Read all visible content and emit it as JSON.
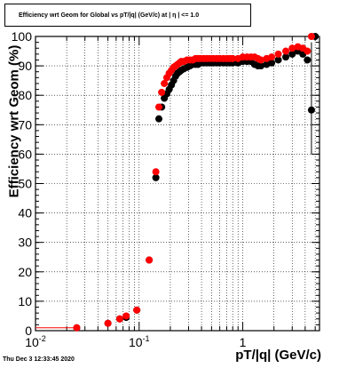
{
  "title": "Efficiency wrt Geom for Global vs pT/|q| (GeV/c) at | η | <= 1.0",
  "timestamp": "Thu Dec  3 12:33:45 2020",
  "chart_data": {
    "type": "scatter",
    "xlabel": "pT/|q| (GeV/c)",
    "ylabel": "Efficiency wrt Geom (%)",
    "xscale": "log",
    "xlim": [
      0.01,
      5.5
    ],
    "ylim": [
      0,
      100
    ],
    "grid": true,
    "y_ticks": [
      0,
      10,
      20,
      30,
      40,
      50,
      60,
      70,
      80,
      90,
      100
    ],
    "x_ticks": [
      {
        "value": 0.01,
        "label": "10",
        "sup": "-2"
      },
      {
        "value": 0.1,
        "label": "10",
        "sup": "-1"
      },
      {
        "value": 1,
        "label": "1",
        "sup": ""
      }
    ],
    "series": [
      {
        "color": "#000000",
        "x": [
          0.025,
          0.05,
          0.065,
          0.075,
          0.095,
          0.125,
          0.145,
          0.155,
          0.165,
          0.175,
          0.185,
          0.195,
          0.205,
          0.215,
          0.225,
          0.235,
          0.245,
          0.255,
          0.27,
          0.29,
          0.31,
          0.33,
          0.35,
          0.37,
          0.39,
          0.42,
          0.45,
          0.48,
          0.52,
          0.56,
          0.6,
          0.65,
          0.7,
          0.75,
          0.8,
          0.9,
          1.0,
          1.1,
          1.2,
          1.3,
          1.4,
          1.5,
          1.7,
          1.9,
          2.2,
          2.6,
          3.0,
          3.4,
          3.8,
          4.2,
          4.6,
          5.0
        ],
        "y": [
          1,
          2.5,
          4,
          4.5,
          7,
          24,
          52,
          72,
          76,
          79,
          80.5,
          82,
          83.5,
          85,
          86.5,
          87.5,
          88,
          88.5,
          89,
          89.5,
          90,
          90.5,
          90.5,
          90.5,
          91,
          91,
          91,
          91,
          91,
          91,
          91,
          91,
          91,
          91,
          91,
          91,
          91.5,
          91.5,
          91.5,
          90.5,
          90,
          90,
          90.5,
          91,
          92,
          93,
          94,
          95,
          94,
          92,
          75,
          100
        ]
      },
      {
        "color": "#ff0000",
        "x": [
          0.025,
          0.05,
          0.065,
          0.075,
          0.095,
          0.125,
          0.145,
          0.155,
          0.165,
          0.175,
          0.185,
          0.195,
          0.205,
          0.215,
          0.225,
          0.235,
          0.245,
          0.255,
          0.27,
          0.29,
          0.31,
          0.33,
          0.35,
          0.37,
          0.39,
          0.42,
          0.45,
          0.48,
          0.52,
          0.56,
          0.6,
          0.65,
          0.7,
          0.75,
          0.8,
          0.9,
          1.0,
          1.1,
          1.2,
          1.3,
          1.4,
          1.5,
          1.7,
          1.9,
          2.2,
          2.6,
          3.0,
          3.4,
          3.8,
          4.2,
          4.6
        ],
        "y": [
          1,
          2.5,
          4,
          5,
          7,
          24,
          54,
          76,
          81,
          84,
          86,
          87.5,
          88.5,
          89.5,
          90,
          90.5,
          91,
          91.5,
          91.5,
          92,
          92,
          92,
          92.5,
          92.5,
          92.5,
          92.5,
          92.5,
          92.5,
          92.5,
          92.5,
          92.5,
          92.5,
          92.5,
          92.5,
          92.5,
          92.5,
          93,
          93,
          93,
          93,
          92.5,
          92,
          92.5,
          93,
          94,
          95,
          96,
          96.5,
          96,
          95,
          100
        ]
      }
    ]
  }
}
